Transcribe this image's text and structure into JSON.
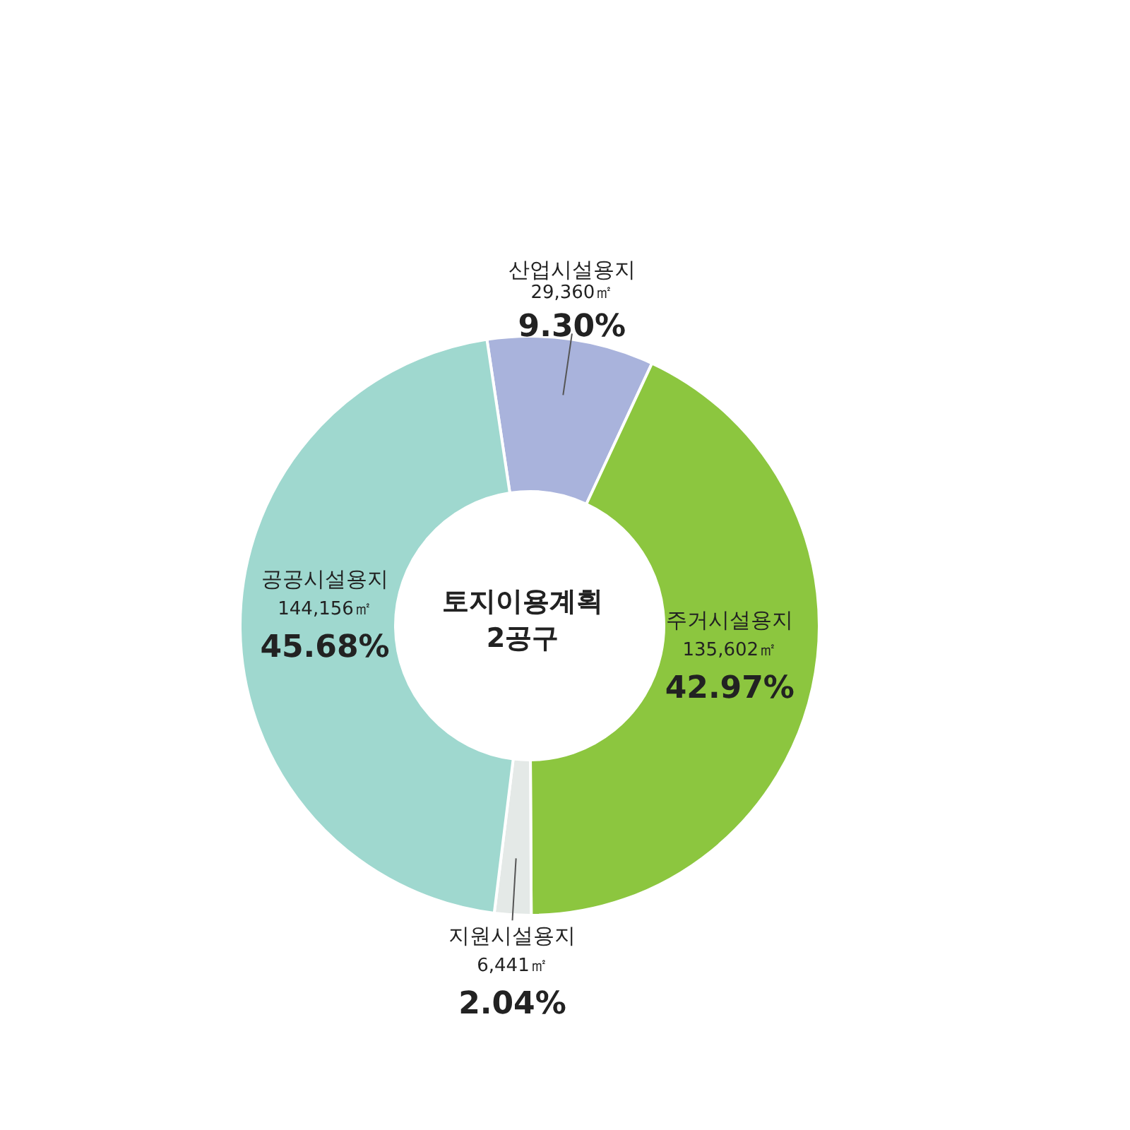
{
  "chart_data": {
    "type": "donut",
    "title": "토지이용계획 2공구",
    "categories": [
      "산업시설용지",
      "주거시설용지",
      "지원시설용지",
      "공공시설용지"
    ],
    "values": [
      9.3,
      42.97,
      2.04,
      45.68
    ],
    "colors": [
      "#a9b3dc",
      "#8cc63f",
      "#e4e9e7",
      "#9fd8cf"
    ],
    "value_labels": [
      "9.30%",
      "42.97%",
      "2.04%",
      "45.68%"
    ],
    "annotations": [
      "29,360㎡",
      "135,602㎡",
      "6,441㎡",
      "144,156㎡"
    ]
  }
}
